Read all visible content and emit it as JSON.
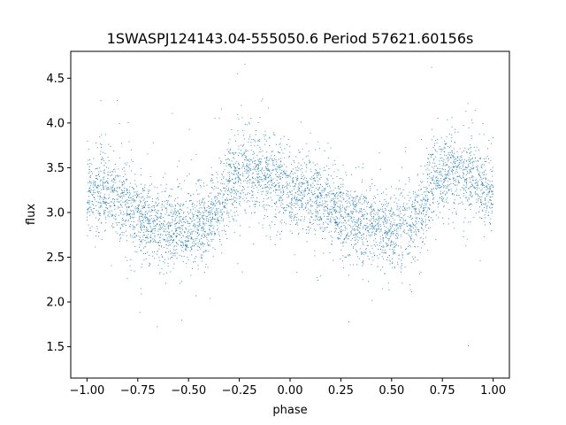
{
  "chart_data": {
    "type": "scatter",
    "title": "1SWASPJ124143.04-555050.6 Period 57621.60156s",
    "xlabel": "phase",
    "ylabel": "flux",
    "xlim": [
      -1.08,
      1.08
    ],
    "ylim": [
      1.15,
      4.8
    ],
    "x_ticks": [
      -1.0,
      -0.75,
      -0.5,
      -0.25,
      0.0,
      0.25,
      0.5,
      0.75,
      1.0
    ],
    "x_tick_labels": [
      "−1.00",
      "−0.75",
      "−0.50",
      "−0.25",
      "0.00",
      "0.25",
      "0.50",
      "0.75",
      "1.00"
    ],
    "y_ticks": [
      1.5,
      2.0,
      2.5,
      3.0,
      3.5,
      4.0,
      4.5
    ],
    "y_tick_labels": [
      "1.5",
      "2.0",
      "2.5",
      "3.0",
      "3.5",
      "4.0",
      "4.5"
    ],
    "grid": false,
    "marker_color": "#1f77b4",
    "light_curve_profile": {
      "phase": [
        -1.0,
        -0.9,
        -0.8,
        -0.7,
        -0.6,
        -0.5,
        -0.45,
        -0.4,
        -0.35,
        -0.3,
        -0.25,
        -0.2,
        -0.1,
        0.0,
        0.1,
        0.2,
        0.3,
        0.4,
        0.5,
        0.55,
        0.6,
        0.65,
        0.7,
        0.75,
        0.8,
        0.9,
        1.0
      ],
      "flux": [
        3.2,
        3.25,
        3.05,
        2.88,
        2.85,
        2.8,
        2.82,
        2.88,
        3.05,
        3.35,
        3.45,
        3.45,
        3.4,
        3.2,
        3.25,
        3.05,
        2.88,
        2.85,
        2.8,
        2.82,
        2.88,
        3.05,
        3.35,
        3.4,
        3.45,
        3.4,
        3.2
      ],
      "scatter_sigma": 0.22
    }
  }
}
